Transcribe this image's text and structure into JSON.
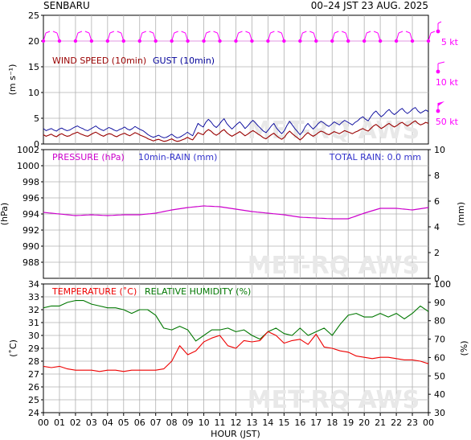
{
  "header": {
    "station": "SENBARU",
    "period": "00–24 JST   23 AUG. 2025"
  },
  "watermark": "MET-RQ AWS",
  "x_axis": {
    "label": "HOUR (JST)",
    "ticks": [
      "00",
      "01",
      "02",
      "03",
      "04",
      "05",
      "06",
      "07",
      "08",
      "09",
      "10",
      "11",
      "12",
      "13",
      "14",
      "15",
      "16",
      "17",
      "18",
      "19",
      "20",
      "21",
      "22",
      "23",
      "00"
    ]
  },
  "chart_data": [
    {
      "type": "line",
      "panel": "wind",
      "legend_labels": {
        "wind": "WIND SPEED (10min)",
        "gust": "GUST (10min)"
      },
      "ylabel": "(m s⁻¹)",
      "ylim": [
        0,
        25
      ],
      "yticks": [
        0,
        5,
        10,
        15,
        20,
        25
      ],
      "colors": {
        "wind": "#990000",
        "gust": "#000099",
        "barb": "#ff00ff"
      },
      "x_hours_step": 0.1667,
      "wind_speed": [
        1.8,
        1.5,
        1.7,
        1.9,
        1.6,
        1.4,
        1.8,
        2.0,
        1.7,
        1.5,
        1.6,
        1.9,
        2.1,
        2.3,
        2.0,
        1.8,
        1.6,
        1.5,
        1.8,
        2.1,
        2.3,
        2.0,
        1.7,
        1.5,
        1.8,
        2.0,
        1.9,
        1.6,
        1.4,
        1.7,
        1.9,
        2.1,
        1.8,
        1.6,
        1.9,
        2.2,
        2.0,
        1.7,
        1.5,
        1.3,
        1.0,
        0.8,
        0.6,
        0.8,
        0.9,
        0.7,
        0.5,
        0.6,
        0.8,
        1.0,
        0.7,
        0.5,
        0.6,
        0.8,
        1.0,
        1.3,
        1.0,
        0.8,
        1.5,
        2.2,
        2.0,
        1.8,
        2.4,
        2.8,
        2.5,
        2.0,
        1.7,
        2.0,
        2.5,
        2.8,
        2.2,
        1.8,
        1.5,
        1.8,
        2.1,
        2.4,
        2.0,
        1.6,
        1.9,
        2.3,
        2.6,
        2.3,
        1.9,
        1.6,
        1.2,
        1.0,
        1.4,
        1.8,
        2.1,
        1.6,
        1.2,
        0.9,
        1.3,
        2.0,
        2.5,
        2.0,
        1.6,
        1.2,
        0.8,
        1.2,
        1.8,
        2.2,
        1.8,
        1.5,
        1.8,
        2.2,
        2.5,
        2.3,
        2.0,
        1.8,
        2.1,
        2.4,
        2.2,
        2.0,
        2.3,
        2.6,
        2.4,
        2.2,
        2.0,
        2.3,
        2.5,
        2.8,
        3.0,
        2.7,
        2.5,
        3.0,
        3.5,
        3.8,
        3.4,
        3.0,
        3.3,
        3.7,
        4.0,
        3.6,
        3.3,
        3.6,
        4.0,
        4.2,
        3.8,
        3.5,
        3.8,
        4.2,
        4.5,
        4.0,
        3.7,
        3.9,
        4.2,
        4.0
      ],
      "gust": [
        3.0,
        2.6,
        2.8,
        3.0,
        2.7,
        2.5,
        2.9,
        3.1,
        2.8,
        2.6,
        2.7,
        3.0,
        3.3,
        3.5,
        3.2,
        3.0,
        2.7,
        2.6,
        2.9,
        3.2,
        3.5,
        3.1,
        2.8,
        2.6,
        2.9,
        3.2,
        3.0,
        2.7,
        2.5,
        2.8,
        3.0,
        3.3,
        2.9,
        2.7,
        3.0,
        3.4,
        3.1,
        2.8,
        2.6,
        2.2,
        1.8,
        1.5,
        1.3,
        1.5,
        1.7,
        1.4,
        1.2,
        1.3,
        1.6,
        1.9,
        1.5,
        1.2,
        1.3,
        1.6,
        1.9,
        2.3,
        1.9,
        1.6,
        2.8,
        4.0,
        3.6,
        3.3,
        4.2,
        4.8,
        4.3,
        3.6,
        3.2,
        3.7,
        4.4,
        4.9,
        4.0,
        3.4,
        2.9,
        3.4,
        3.9,
        4.3,
        3.7,
        3.0,
        3.5,
        4.1,
        4.6,
        4.1,
        3.5,
        3.0,
        2.5,
        2.2,
        2.8,
        3.5,
        4.0,
        3.1,
        2.5,
        2.0,
        2.6,
        3.6,
        4.4,
        3.7,
        3.0,
        2.4,
        1.8,
        2.4,
        3.4,
        4.0,
        3.4,
        2.9,
        3.4,
        4.0,
        4.4,
        4.1,
        3.7,
        3.4,
        3.8,
        4.3,
        4.0,
        3.7,
        4.2,
        4.6,
        4.3,
        4.0,
        3.7,
        4.2,
        4.5,
        5.0,
        5.3,
        4.8,
        4.5,
        5.3,
        6.0,
        6.4,
        5.8,
        5.3,
        5.7,
        6.3,
        6.7,
        6.1,
        5.7,
        6.1,
        6.6,
        6.9,
        6.3,
        5.9,
        6.3,
        6.8,
        7.1,
        6.4,
        6.0,
        6.3,
        6.6,
        6.3
      ],
      "wind_barbs": {
        "hours": [
          0,
          1,
          2,
          3,
          4,
          5,
          6,
          7,
          8,
          9,
          10,
          11,
          12,
          13,
          14,
          15,
          16,
          17,
          18,
          19,
          20,
          21,
          22,
          23,
          24
        ],
        "speeds_ms": [
          1.8,
          1.9,
          2.0,
          1.8,
          1.7,
          1.9,
          1.8,
          0.8,
          0.7,
          0.9,
          2.0,
          2.5,
          2.2,
          1.8,
          1.5,
          1.7,
          1.9,
          2.2,
          2.3,
          2.5,
          3.2,
          3.6,
          3.9,
          4.1,
          4.1
        ]
      },
      "barb_legend": [
        "5 kt",
        "10 kt",
        "50 kt"
      ]
    },
    {
      "type": "line",
      "panel": "pressure",
      "legend_labels": {
        "pressure": "PRESSURE (hPa)",
        "rain": "10min-RAIN (mm)",
        "total_rain": "TOTAL RAIN: 0.0 mm"
      },
      "ylabel_left": "(hPa)",
      "ylabel_right": "(mm)",
      "ylim_left": [
        986,
        1002
      ],
      "yticks_left": [
        988,
        990,
        992,
        994,
        996,
        998,
        1000,
        1002
      ],
      "ylim_right": [
        0,
        10
      ],
      "yticks_right": [
        0,
        2,
        4,
        6,
        8,
        10
      ],
      "colors": {
        "pressure": "#cc00cc",
        "rain": "#3333cc",
        "total": "#3333cc"
      },
      "hours": [
        0,
        1,
        2,
        3,
        4,
        5,
        6,
        7,
        8,
        9,
        10,
        11,
        12,
        13,
        14,
        15,
        16,
        17,
        18,
        19,
        20,
        21,
        22,
        23,
        24
      ],
      "pressure": [
        994.2,
        994.0,
        993.8,
        993.9,
        993.8,
        993.9,
        993.9,
        994.1,
        994.5,
        994.8,
        995.0,
        994.9,
        994.6,
        994.3,
        994.1,
        993.9,
        993.6,
        993.5,
        993.4,
        993.4,
        994.1,
        994.7,
        994.7,
        994.5,
        994.8
      ]
    },
    {
      "type": "line",
      "panel": "temperature",
      "legend_labels": {
        "temp": "TEMPERATURE (˚C)",
        "rh": "RELATIVE HUMIDITY (%)"
      },
      "ylabel_left": "(˚C)",
      "ylabel_right": "(%)",
      "ylim_left": [
        24,
        34
      ],
      "yticks_left": [
        24,
        25,
        26,
        27,
        28,
        29,
        30,
        31,
        32,
        33,
        34
      ],
      "ylim_right": [
        30,
        100
      ],
      "yticks_right": [
        30,
        40,
        50,
        60,
        70,
        80,
        90,
        100
      ],
      "colors": {
        "temp": "#ee0000",
        "rh": "#007700"
      },
      "x_hours_step": 0.5,
      "temperature": [
        27.6,
        27.5,
        27.6,
        27.4,
        27.3,
        27.3,
        27.3,
        27.2,
        27.3,
        27.3,
        27.2,
        27.3,
        27.3,
        27.3,
        27.3,
        27.4,
        28.0,
        29.2,
        28.5,
        28.8,
        29.5,
        29.8,
        30.0,
        29.2,
        29.0,
        29.6,
        29.5,
        29.6,
        30.3,
        30.0,
        29.4,
        29.6,
        29.7,
        29.3,
        30.1,
        29.1,
        29.0,
        28.8,
        28.7,
        28.4,
        28.3,
        28.2,
        28.3,
        28.3,
        28.2,
        28.1,
        28.1,
        28.0,
        27.8
      ],
      "humidity": [
        87,
        88,
        88,
        90,
        91,
        91,
        89,
        88,
        87,
        87,
        86,
        84,
        86,
        86,
        83,
        76,
        75,
        77,
        75,
        69,
        72,
        75,
        75,
        76,
        74,
        75,
        72,
        70,
        74,
        76,
        73,
        72,
        76,
        72,
        74,
        76,
        72,
        78,
        83,
        84,
        82,
        82,
        84,
        82,
        84,
        81,
        84,
        88,
        85
      ]
    }
  ]
}
